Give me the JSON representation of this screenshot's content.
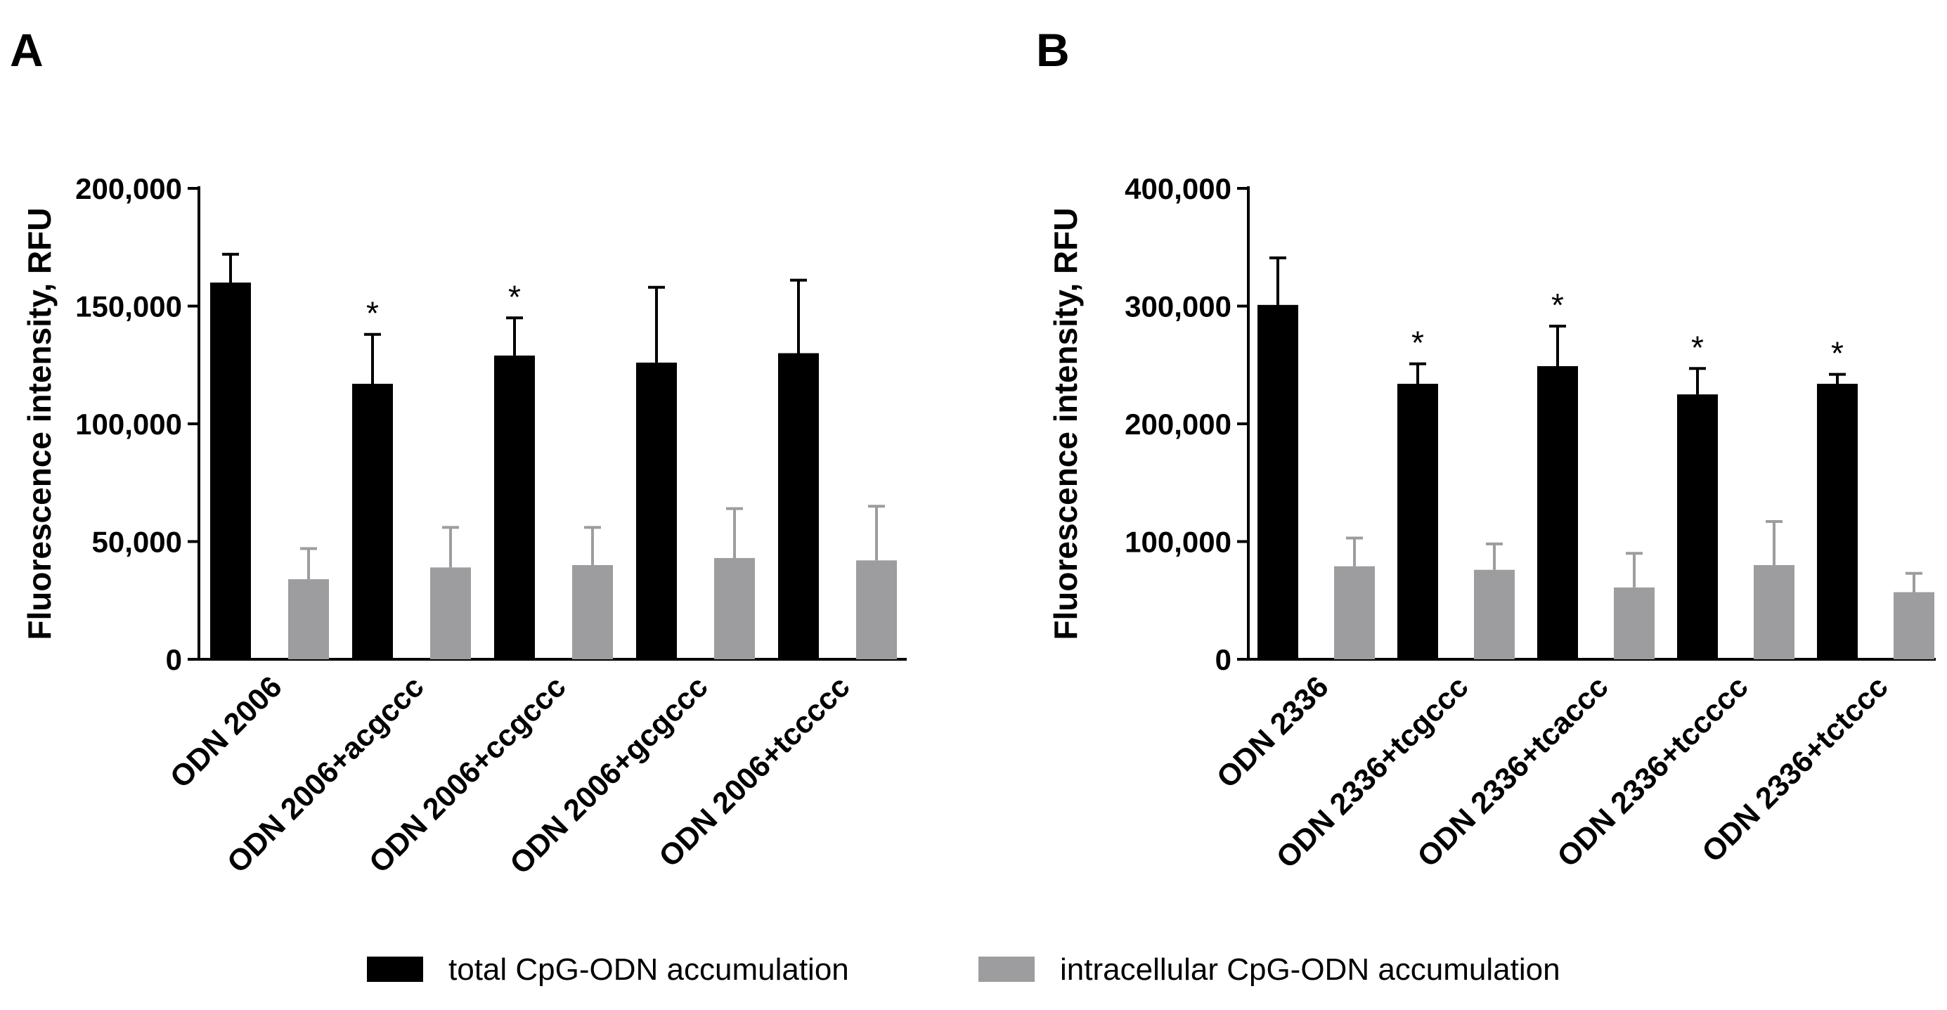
{
  "chart_data": [
    {
      "type": "bar",
      "panel": "A",
      "ylabel": "Fluorescence intensity, RFU",
      "ylim": [
        0,
        200000
      ],
      "yticks": [
        0,
        50000,
        100000,
        150000,
        200000
      ],
      "ytick_labels": [
        "0",
        "50,000",
        "100,000",
        "150,000",
        "200,000"
      ],
      "categories": [
        "ODN 2006",
        "ODN 2006+acgccc",
        "ODN 2006+ccgccc",
        "ODN 2006+gcgccc",
        "ODN 2006+tccccc"
      ],
      "series": [
        {
          "name": "total CpG-ODN accumulation",
          "color": "#000000",
          "values": [
            160000,
            117000,
            129000,
            126000,
            130000
          ],
          "errors": [
            12000,
            21000,
            16000,
            32000,
            31000
          ],
          "significance": [
            "",
            "*",
            "*",
            "",
            ""
          ]
        },
        {
          "name": "intracellular CpG-ODN accumulation",
          "color": "#9d9d9f",
          "values": [
            34000,
            39000,
            40000,
            43000,
            42000
          ],
          "errors": [
            13000,
            17000,
            16000,
            21000,
            23000
          ],
          "significance": [
            "",
            "",
            "",
            "",
            ""
          ]
        }
      ]
    },
    {
      "type": "bar",
      "panel": "B",
      "ylabel": "Fluorescence intensity, RFU",
      "ylim": [
        0,
        400000
      ],
      "yticks": [
        0,
        100000,
        200000,
        300000,
        400000
      ],
      "ytick_labels": [
        "0",
        "100,000",
        "200,000",
        "300,000",
        "400,000"
      ],
      "categories": [
        "ODN 2336",
        "ODN 2336+tcgccc",
        "ODN 2336+tcaccc",
        "ODN 2336+tccccc",
        "ODN 2336+tctccc"
      ],
      "series": [
        {
          "name": "total CpG-ODN accumulation",
          "color": "#000000",
          "values": [
            301000,
            234000,
            249000,
            225000,
            234000
          ],
          "errors": [
            40000,
            17000,
            34000,
            22000,
            8000
          ],
          "significance": [
            "",
            "*",
            "*",
            "*",
            "*"
          ]
        },
        {
          "name": "intracellular CpG-ODN accumulation",
          "color": "#9d9d9f",
          "values": [
            79000,
            76000,
            61000,
            80000,
            57000
          ],
          "errors": [
            24000,
            22000,
            29000,
            37000,
            16000
          ],
          "significance": [
            "",
            "",
            "",
            "",
            ""
          ]
        }
      ]
    }
  ],
  "legend": {
    "items": [
      {
        "label": "total CpG-ODN accumulation",
        "color": "#000000"
      },
      {
        "label": "intracellular CpG-ODN accumulation",
        "color": "#9d9d9f"
      }
    ]
  }
}
